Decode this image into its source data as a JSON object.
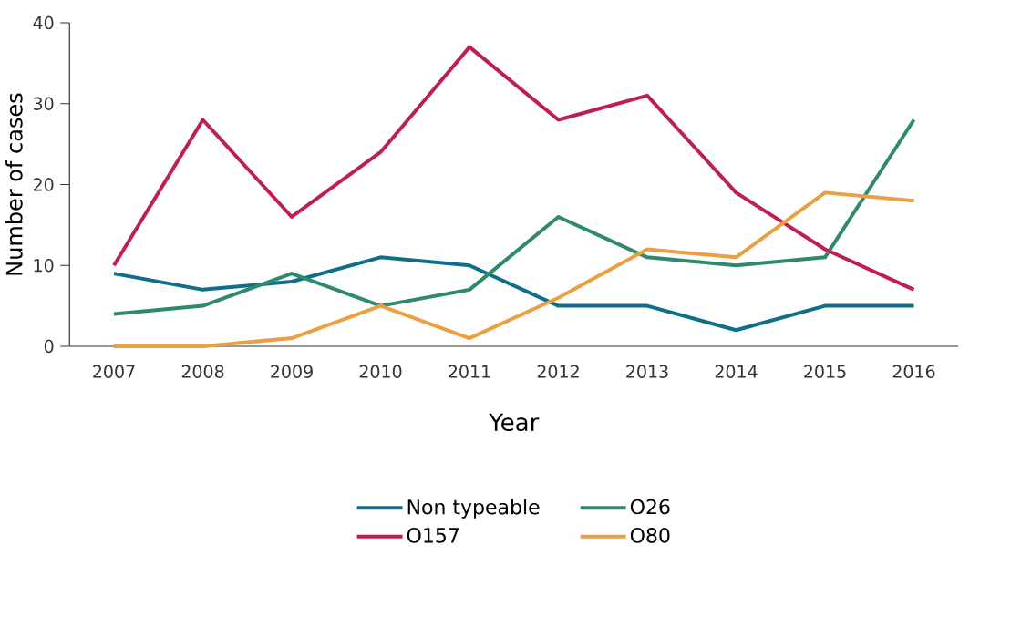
{
  "chart_data": {
    "type": "line",
    "xlabel": "Year",
    "ylabel": "Number of cases",
    "categories": [
      "2007",
      "2008",
      "2009",
      "2010",
      "2011",
      "2012",
      "2013",
      "2014",
      "2015",
      "2016"
    ],
    "series": [
      {
        "name": "Non typeable",
        "color": "#0e6e8c",
        "values": [
          9,
          7,
          8,
          11,
          10,
          5,
          5,
          2,
          5,
          5
        ]
      },
      {
        "name": "O26",
        "color": "#2e8a6a",
        "values": [
          4,
          5,
          9,
          5,
          7,
          16,
          11,
          10,
          11,
          28
        ]
      },
      {
        "name": "O157",
        "color": "#be1e55",
        "values": [
          10,
          28,
          16,
          24,
          37,
          28,
          31,
          19,
          12,
          7
        ]
      },
      {
        "name": "O80",
        "color": "#eaa040",
        "values": [
          0,
          0,
          1,
          5,
          1,
          6,
          12,
          11,
          19,
          18
        ]
      }
    ],
    "ylim": [
      0,
      40
    ],
    "yticks": [
      0,
      10,
      20,
      30,
      40
    ],
    "grid": false,
    "legend": "bottom"
  }
}
